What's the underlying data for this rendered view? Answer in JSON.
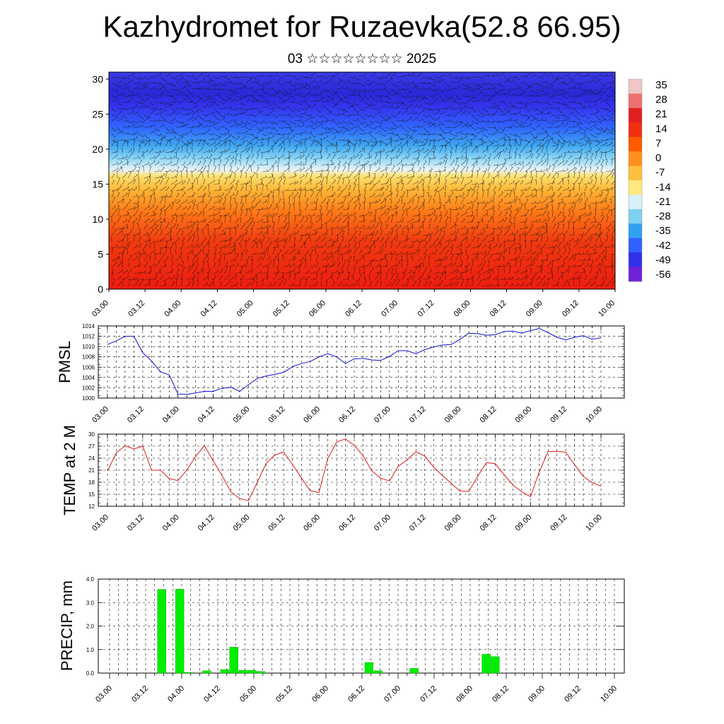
{
  "header": {
    "title": "Kazhydromet for Ruzaevka(52.8 66.95)",
    "subtitle": "03 ☆☆☆☆☆☆☆☆ 2025"
  },
  "colors": {
    "pmsl_line": "#1010d8",
    "temp_line": "#e01818",
    "precip_bar": "#00ee00",
    "precip_bar_edge": "#00aa00"
  },
  "chart_data": [
    {
      "type": "heatmap",
      "name_id": "cross-section",
      "title": "",
      "xlabel": "",
      "ylabel": "",
      "x_tick_labels": [
        "03.00",
        "03.12",
        "04.00",
        "04.12",
        "05.00",
        "05.12",
        "06.00",
        "06.12",
        "07.00",
        "07.12",
        "08.00",
        "08.12",
        "09.00",
        "09.12",
        "10.00"
      ],
      "y_ticks": [
        0,
        5,
        10,
        15,
        20,
        25,
        30
      ],
      "ylim": [
        0,
        31
      ],
      "colorbar": {
        "labels": [
          "35",
          "28",
          "21",
          "14",
          "7",
          "0",
          "-7",
          "-14",
          "-21",
          "-28",
          "-35",
          "-42",
          "-49",
          "-56"
        ],
        "colors": [
          "#f2c6c6",
          "#ee6f6f",
          "#e02020",
          "#f03010",
          "#ff5a00",
          "#ff9020",
          "#ffc040",
          "#ffe880",
          "#d8f0f8",
          "#80d0f0",
          "#30a0f0",
          "#3060ff",
          "#3030e8",
          "#7020d8"
        ]
      },
      "zero_isotherm_level_approx": 16.5,
      "wind_barbs": true
    },
    {
      "type": "line",
      "name_id": "pmsl",
      "ylabel": "PMSL",
      "ylim": [
        1000,
        1014
      ],
      "y_ticks": [
        1000,
        1002,
        1004,
        1006,
        1008,
        1010,
        1012,
        1014
      ],
      "x_tick_labels": [
        "03.00",
        "03.12",
        "04.00",
        "04.12",
        "05.00",
        "05.12",
        "06.00",
        "06.12",
        "07.00",
        "07.12",
        "08.00",
        "08.12",
        "09.00",
        "09.12",
        "10.00"
      ],
      "step_hours": 3,
      "values": [
        1010.4,
        1011.1,
        1012.0,
        1012.0,
        1008.8,
        1007.2,
        1005.1,
        1004.5,
        1000.8,
        1000.7,
        1001.0,
        1001.3,
        1001.3,
        1001.9,
        1002.1,
        1001.3,
        1002.6,
        1003.8,
        1004.3,
        1004.6,
        1005.0,
        1006.1,
        1006.7,
        1007.1,
        1008.0,
        1008.6,
        1008.0,
        1006.7,
        1007.6,
        1007.7,
        1007.4,
        1007.3,
        1008.1,
        1009.2,
        1009.2,
        1008.6,
        1009.4,
        1009.9,
        1010.3,
        1010.4,
        1011.4,
        1012.6,
        1012.5,
        1012.2,
        1012.3,
        1012.9,
        1013.0,
        1012.6,
        1013.1,
        1013.5,
        1012.7,
        1011.8,
        1011.3,
        1011.8,
        1012.1,
        1011.4,
        1011.7
      ]
    },
    {
      "type": "line",
      "name_id": "temp-2m",
      "ylabel": "TEMP at 2 M",
      "ylim": [
        12,
        30
      ],
      "y_ticks": [
        12,
        15,
        18,
        21,
        24,
        27,
        30
      ],
      "x_tick_labels": [
        "03.00",
        "03.12",
        "04.00",
        "04.12",
        "05.00",
        "05.12",
        "06.00",
        "06.12",
        "07.00",
        "07.12",
        "08.00",
        "08.12",
        "09.00",
        "09.12",
        "10.00"
      ],
      "step_hours": 3,
      "values": [
        20.8,
        25.3,
        27.1,
        26.3,
        27.0,
        21.0,
        21.0,
        18.9,
        18.4,
        21.0,
        24.4,
        27.1,
        23.3,
        19.7,
        15.6,
        13.9,
        13.4,
        18.0,
        22.7,
        24.8,
        25.5,
        22.4,
        19.1,
        15.9,
        15.4,
        23.9,
        28.0,
        28.8,
        27.2,
        24.6,
        20.8,
        19.0,
        18.3,
        22.0,
        23.6,
        25.6,
        24.5,
        21.8,
        19.7,
        17.7,
        15.8,
        15.7,
        19.4,
        22.9,
        22.6,
        19.9,
        17.3,
        15.6,
        14.4,
        20.6,
        25.7,
        25.7,
        25.5,
        22.4,
        19.4,
        17.9,
        17.0
      ]
    },
    {
      "type": "bar",
      "name_id": "precip",
      "ylabel": "PRECIP, mm",
      "ylim": [
        0,
        4
      ],
      "y_tick_labels": [
        "0.0",
        "1.0",
        "2.0",
        "3.0",
        "4.0"
      ],
      "x_tick_labels": [
        "03.00",
        "03.12",
        "04.00",
        "04.12",
        "05.00",
        "05.12",
        "06.00",
        "06.12",
        "07.00",
        "07.12",
        "08.00",
        "08.12",
        "09.00",
        "09.12",
        "10.00"
      ],
      "step_hours": 3,
      "values": [
        0,
        0,
        0,
        0,
        0,
        3.56,
        0,
        3.57,
        0.03,
        0,
        0.1,
        0,
        0.15,
        1.1,
        0.12,
        0.12,
        0.07,
        0,
        0,
        0,
        0,
        0,
        0,
        0,
        0,
        0,
        0,
        0,
        0.45,
        0.1,
        0,
        0,
        0,
        0.2,
        0,
        0,
        0,
        0,
        0,
        0,
        0,
        0.8,
        0.7,
        0,
        0,
        0,
        0,
        0,
        0,
        0,
        0,
        0,
        0,
        0,
        0,
        0
      ]
    }
  ]
}
